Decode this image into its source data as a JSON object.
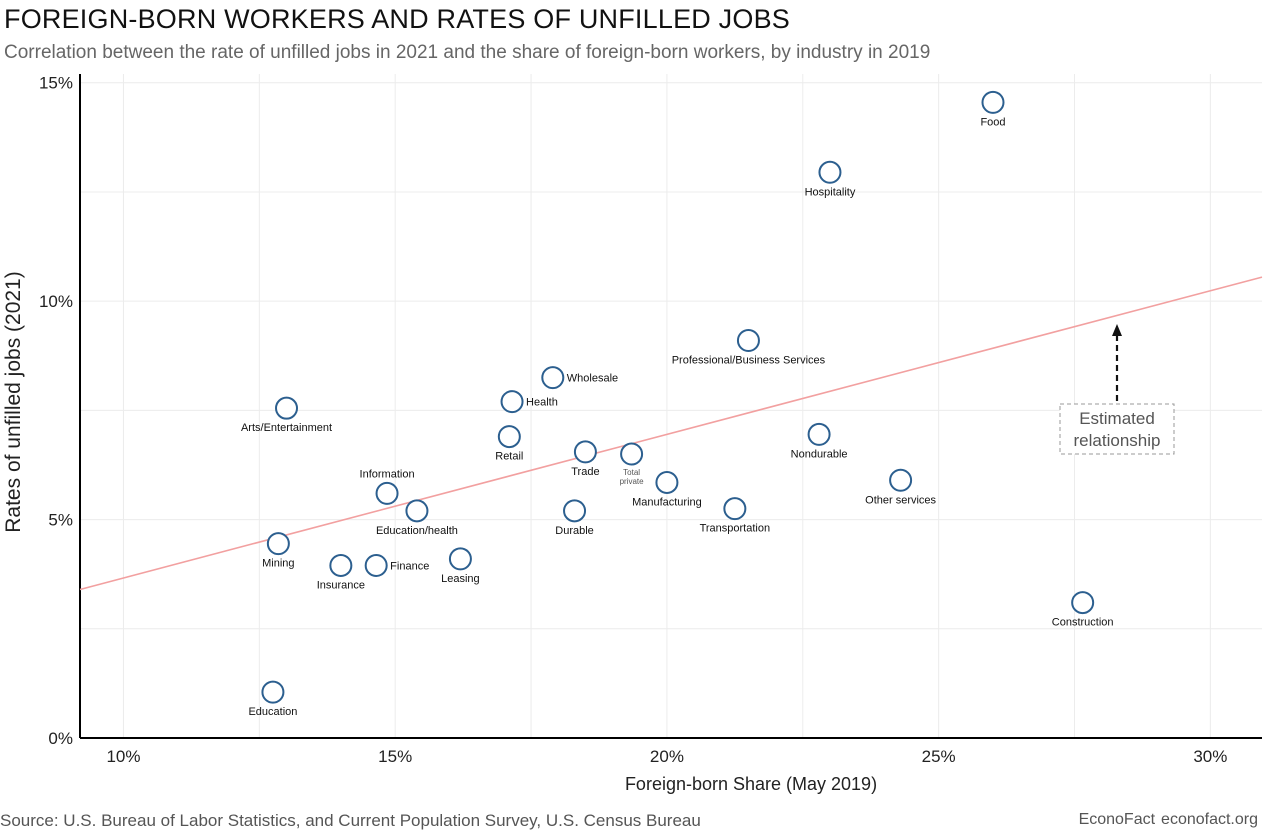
{
  "chart_data": {
    "type": "scatter",
    "title": "FOREIGN-BORN WORKERS AND RATES OF UNFILLED JOBS",
    "subtitle": "Correlation between the rate of unfilled jobs in 2021 and the share of foreign-born workers, by industry in 2019",
    "xlabel": "Foreign-born Share (May 2019)",
    "ylabel": "Rates of unfilled jobs (2021)",
    "xlim": [
      9.2,
      30.95
    ],
    "ylim": [
      0,
      15.2
    ],
    "x_ticks": [
      10,
      15,
      20,
      25,
      30
    ],
    "x_tick_labels": [
      "10%",
      "15%",
      "20%",
      "25%",
      "30%"
    ],
    "y_ticks": [
      0,
      5,
      10,
      15
    ],
    "y_tick_labels": [
      "0%",
      "5%",
      "10%",
      "15%"
    ],
    "grid": true,
    "points": [
      {
        "label": "Food",
        "x": 26.0,
        "y": 14.55,
        "pos": "below"
      },
      {
        "label": "Hospitality",
        "x": 23.0,
        "y": 12.95,
        "pos": "below"
      },
      {
        "label": "Professional/Business Services",
        "x": 21.5,
        "y": 9.1,
        "pos": "below"
      },
      {
        "label": "Wholesale",
        "x": 17.9,
        "y": 8.25,
        "pos": "right"
      },
      {
        "label": "Health",
        "x": 17.15,
        "y": 7.7,
        "pos": "right"
      },
      {
        "label": "Arts/Entertainment",
        "x": 13.0,
        "y": 7.55,
        "pos": "below"
      },
      {
        "label": "Retail",
        "x": 17.1,
        "y": 6.9,
        "pos": "below"
      },
      {
        "label": "Nondurable",
        "x": 22.8,
        "y": 6.95,
        "pos": "below"
      },
      {
        "label": "Trade",
        "x": 18.5,
        "y": 6.55,
        "pos": "below"
      },
      {
        "label": "Total private",
        "x": 19.35,
        "y": 6.5,
        "pos": "below-small"
      },
      {
        "label": "Other services",
        "x": 24.3,
        "y": 5.9,
        "pos": "below"
      },
      {
        "label": "Manufacturing",
        "x": 20.0,
        "y": 5.85,
        "pos": "below"
      },
      {
        "label": "Information",
        "x": 14.85,
        "y": 5.6,
        "pos": "above"
      },
      {
        "label": "Transportation",
        "x": 21.25,
        "y": 5.25,
        "pos": "below"
      },
      {
        "label": "Education/health",
        "x": 15.4,
        "y": 5.2,
        "pos": "below"
      },
      {
        "label": "Durable",
        "x": 18.3,
        "y": 5.2,
        "pos": "below"
      },
      {
        "label": "Mining",
        "x": 12.85,
        "y": 4.45,
        "pos": "below"
      },
      {
        "label": "Leasing",
        "x": 16.2,
        "y": 4.1,
        "pos": "below"
      },
      {
        "label": "Finance",
        "x": 14.65,
        "y": 3.95,
        "pos": "right"
      },
      {
        "label": "Insurance",
        "x": 14.0,
        "y": 3.95,
        "pos": "below"
      },
      {
        "label": "Construction",
        "x": 27.65,
        "y": 3.1,
        "pos": "below"
      },
      {
        "label": "Education",
        "x": 12.75,
        "y": 1.05,
        "pos": "below"
      }
    ],
    "trend_line": {
      "x": [
        9.2,
        30.95
      ],
      "y": [
        3.4,
        10.55
      ],
      "color": "#f2a0a0"
    },
    "annotation": {
      "lines": [
        "Estimated",
        "relationship"
      ]
    },
    "marker_color": "#2c5f8f"
  },
  "footer": {
    "source": "Source: U.S. Bureau of Labor Statistics, and Current Population Survey, U.S. Census Bureau",
    "brand": "EconoFact",
    "site": "econofact.org"
  }
}
